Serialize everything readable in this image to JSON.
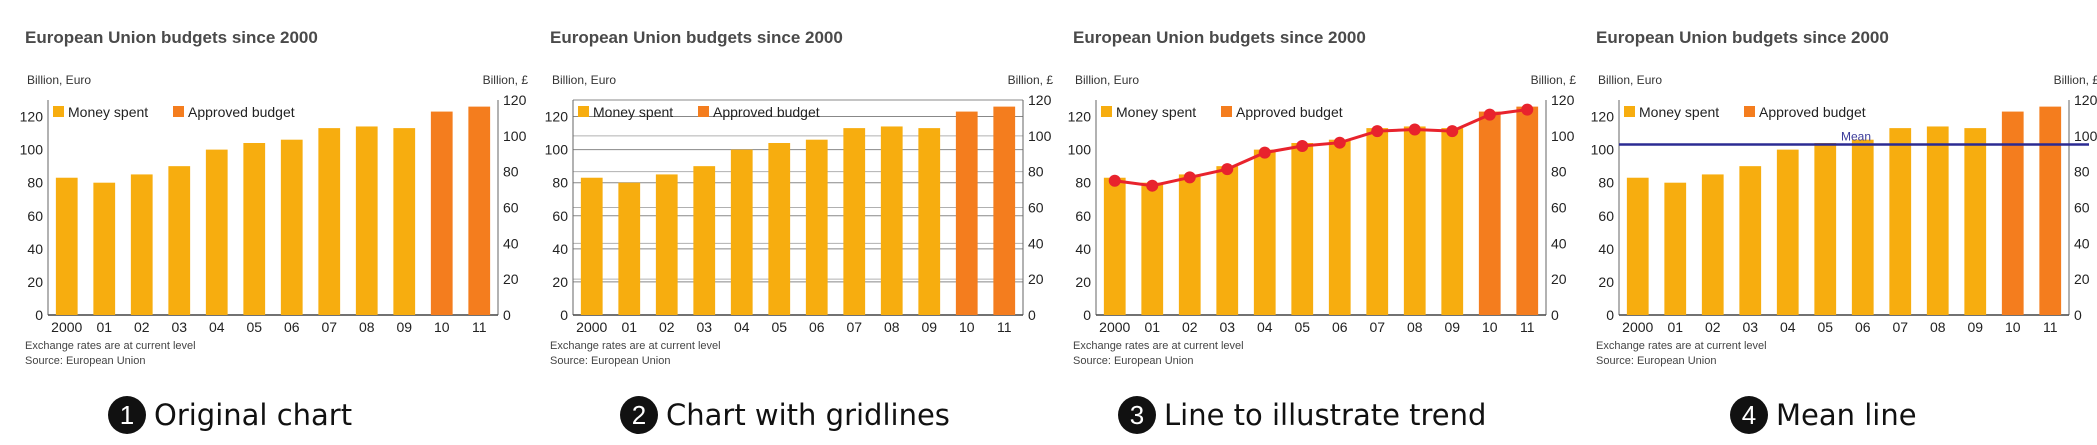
{
  "panels": [
    {
      "number": "1",
      "caption": "Original chart",
      "variant": "original"
    },
    {
      "number": "2",
      "caption": "Chart with gridlines",
      "variant": "gridlines"
    },
    {
      "number": "3",
      "caption": "Line to illustrate trend",
      "variant": "trend"
    },
    {
      "number": "4",
      "caption": "Mean line",
      "variant": "mean",
      "mean_label": "Mean"
    }
  ],
  "colors": {
    "spent": "#f7ad0f",
    "approved": "#f47d1e",
    "trend": "#e8232d",
    "mean": "#2b2b93",
    "grid": "#888888"
  },
  "chart_data": {
    "type": "bar",
    "title": "European Union budgets since 2000",
    "ylabel_left": "Billion, Euro",
    "ylabel_right": "Billion, £",
    "categories": [
      "2000",
      "01",
      "02",
      "03",
      "04",
      "05",
      "06",
      "07",
      "08",
      "09",
      "10",
      "11"
    ],
    "series": [
      {
        "name": "Money spent",
        "values": [
          83,
          80,
          85,
          90,
          100,
          104,
          106,
          113,
          114,
          113,
          null,
          null
        ]
      },
      {
        "name": "Approved budget",
        "values": [
          null,
          null,
          null,
          null,
          null,
          null,
          null,
          null,
          null,
          null,
          123,
          126
        ]
      }
    ],
    "ylim_left": [
      0,
      130
    ],
    "yticks_left": [
      0,
      20,
      40,
      60,
      80,
      100,
      120
    ],
    "ylim_right": [
      0,
      120
    ],
    "yticks_right": [
      0,
      20,
      40,
      60,
      80,
      100,
      120
    ],
    "note": "Exchange rates are at current level",
    "source": "Source: European Union",
    "legend_position": "top-left"
  }
}
